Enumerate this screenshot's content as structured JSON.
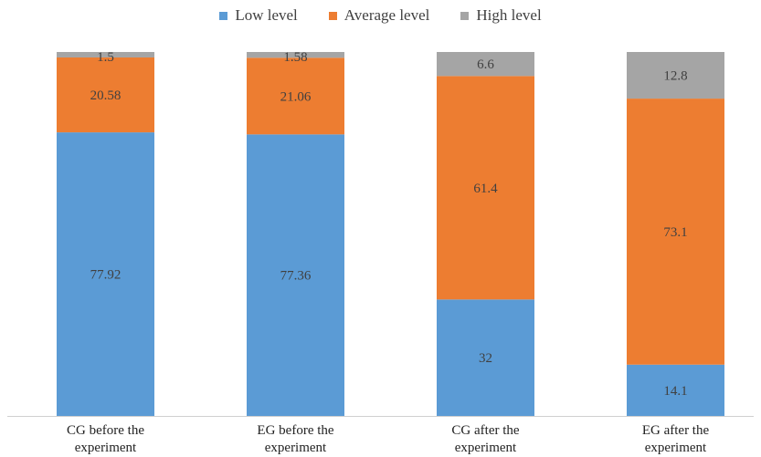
{
  "chart_data": {
    "type": "bar",
    "stacked": true,
    "categories": [
      [
        "CG before the",
        "experiment"
      ],
      [
        "EG before the",
        "experiment"
      ],
      [
        "CG after the",
        "experiment"
      ],
      [
        "EG after the",
        "experiment"
      ]
    ],
    "series": [
      {
        "name": "Low level",
        "color": "#5B9BD5",
        "values": [
          77.92,
          77.36,
          32,
          14.1
        ]
      },
      {
        "name": "Average level",
        "color": "#ED7D31",
        "values": [
          20.58,
          21.06,
          61.4,
          73.1
        ]
      },
      {
        "name": "High level",
        "color": "#A5A5A5",
        "values": [
          1.5,
          1.58,
          6.6,
          12.8
        ]
      }
    ],
    "ylim": [
      0,
      100
    ],
    "grid": false,
    "legend_position": "top",
    "data_labels": true
  }
}
